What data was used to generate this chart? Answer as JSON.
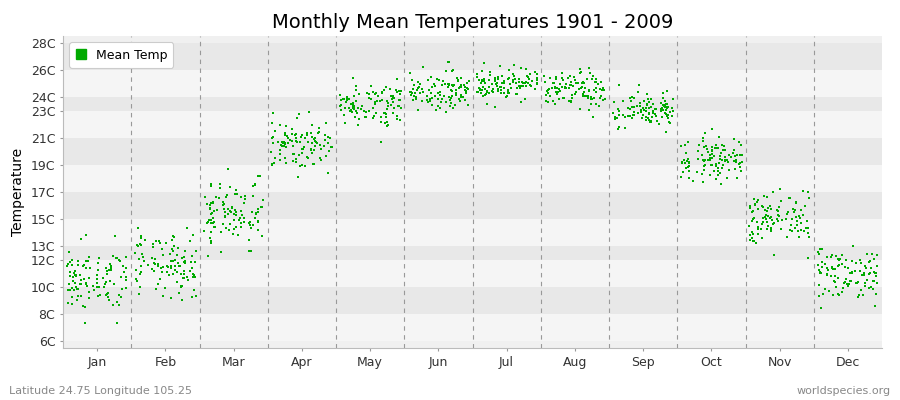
{
  "title": "Monthly Mean Temperatures 1901 - 2009",
  "ylabel": "Temperature",
  "months": [
    "Jan",
    "Feb",
    "Mar",
    "Apr",
    "May",
    "Jun",
    "Jul",
    "Aug",
    "Sep",
    "Oct",
    "Nov",
    "Dec"
  ],
  "yticks": [
    6,
    8,
    10,
    12,
    13,
    15,
    17,
    19,
    21,
    23,
    24,
    26,
    28
  ],
  "ytick_labels": [
    "6C",
    "8C",
    "10C",
    "12C",
    "13C",
    "15C",
    "17C",
    "19C",
    "21C",
    "23C",
    "24C",
    "26C",
    "28C"
  ],
  "ylim": [
    5.5,
    28.5
  ],
  "dot_color": "#00aa00",
  "dot_size": 4,
  "bg_color": "#f0f0f0",
  "stripe_light": "#f5f5f5",
  "stripe_dark": "#e8e8e8",
  "grid_color": "#999999",
  "title_fontsize": 14,
  "axis_fontsize": 10,
  "tick_fontsize": 9,
  "legend_label": "Mean Temp",
  "footer_left": "Latitude 24.75 Longitude 105.25",
  "footer_right": "worldspecies.org",
  "monthly_means": [
    10.5,
    11.5,
    15.5,
    20.5,
    23.5,
    24.5,
    25.0,
    24.5,
    23.0,
    19.5,
    15.0,
    11.0
  ],
  "monthly_stds": [
    1.2,
    1.2,
    1.3,
    0.9,
    0.8,
    0.7,
    0.6,
    0.7,
    0.7,
    0.8,
    1.0,
    1.0
  ],
  "years": 109
}
